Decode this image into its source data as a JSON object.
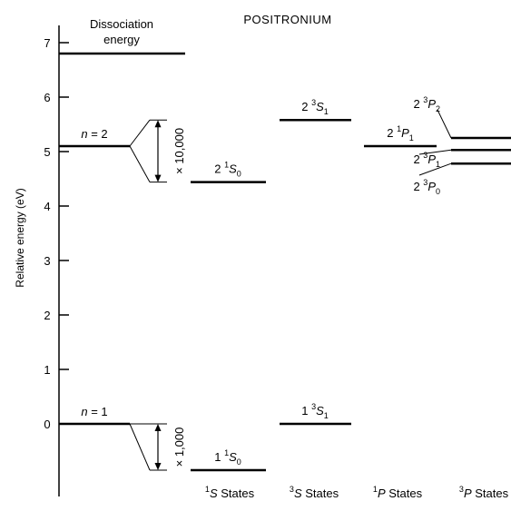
{
  "title": "POSITRONIUM",
  "y_axis": {
    "label": "Relative energy (eV)",
    "min": -1.0,
    "max": 7.3,
    "ticks": [
      {
        "value": 0,
        "label": "0"
      },
      {
        "value": 1,
        "label": "1"
      },
      {
        "value": 2,
        "label": "2"
      },
      {
        "value": 3,
        "label": "3"
      },
      {
        "value": 4,
        "label": "4"
      },
      {
        "value": 5,
        "label": "5"
      },
      {
        "value": 6,
        "label": "6"
      },
      {
        "value": 7,
        "label": "7"
      }
    ]
  },
  "dissociation": {
    "label_line1": "Dissociation",
    "label_line2": "energy",
    "energy": 6.8
  },
  "principal_levels": [
    {
      "label": "n = 2",
      "energy": 5.1
    },
    {
      "label": "n = 1",
      "energy": 0.0
    }
  ],
  "magnifications": [
    {
      "label": "× 10,000",
      "top_energy": 5.58,
      "bottom_energy": 4.44
    },
    {
      "label": "× 1,000",
      "top_energy": 0.0,
      "bottom_energy": -0.85
    }
  ],
  "columns": [
    {
      "id": "1S",
      "sup": "1",
      "letter": "S",
      "suffix": " States"
    },
    {
      "id": "3S",
      "sup": "3",
      "letter": "S",
      "suffix": " States"
    },
    {
      "id": "1P",
      "sup": "1",
      "letter": "P",
      "suffix": " States"
    },
    {
      "id": "3P",
      "sup": "3",
      "letter": "P",
      "suffix": " States"
    }
  ],
  "states": [
    {
      "column": "1S",
      "n": "2",
      "sup": "1",
      "letter": "S",
      "sub": "0",
      "energy": 4.44
    },
    {
      "column": "1S",
      "n": "1",
      "sup": "1",
      "letter": "S",
      "sub": "0",
      "energy": -0.85
    },
    {
      "column": "3S",
      "n": "2",
      "sup": "3",
      "letter": "S",
      "sub": "1",
      "energy": 5.58
    },
    {
      "column": "3S",
      "n": "1",
      "sup": "3",
      "letter": "S",
      "sub": "1",
      "energy": 0.0
    },
    {
      "column": "1P",
      "n": "2",
      "sup": "1",
      "letter": "P",
      "sub": "1",
      "energy": 5.1
    },
    {
      "column": "3P",
      "n": "2",
      "sup": "3",
      "letter": "P",
      "sub": "2",
      "energy": 5.25
    },
    {
      "column": "3P",
      "n": "2",
      "sup": "3",
      "letter": "P",
      "sub": "1",
      "energy": 5.03
    },
    {
      "column": "3P",
      "n": "2",
      "sup": "3",
      "letter": "P",
      "sub": "0",
      "energy": 4.78
    }
  ]
}
